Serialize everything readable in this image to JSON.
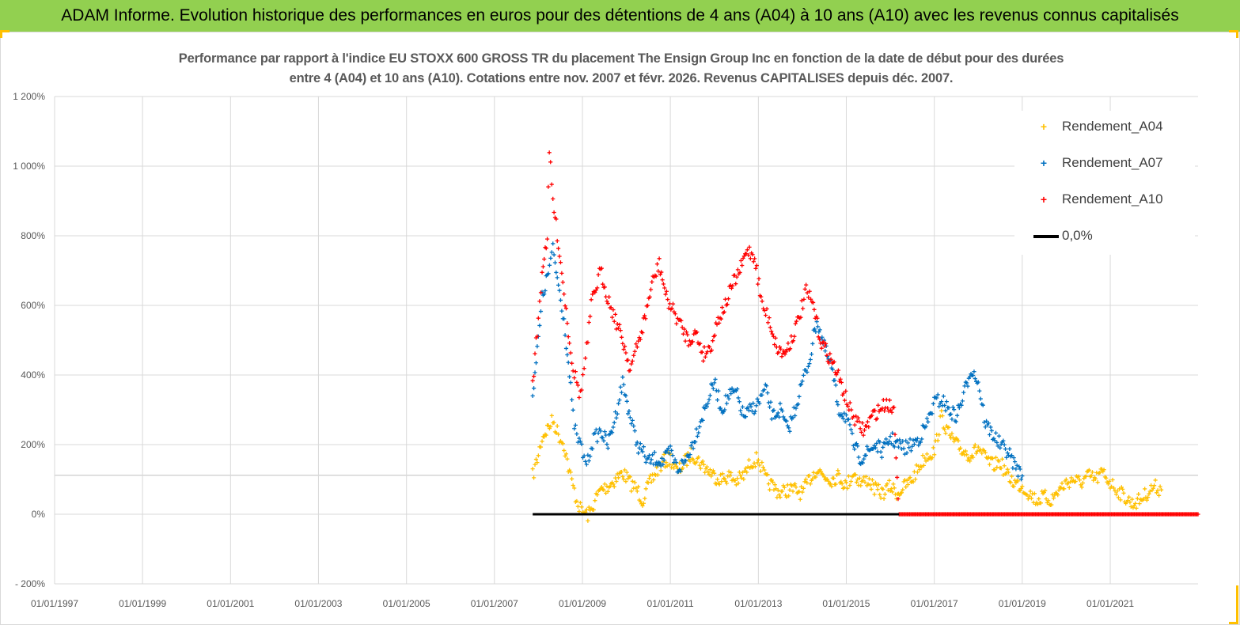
{
  "banner": {
    "title": "ADAM Informe. Evolution historique des performances en euros pour des détentions de 4 ans (A04) à 10 ans (A10) avec les revenus connus capitalisés",
    "color": "#92d050"
  },
  "chart_data": {
    "type": "scatter",
    "title_line1": "Performance par rapport à l'indice EU STOXX 600 GROSS TR  du placement The Ensign Group Inc en fonction de la date de début pour des durées",
    "title_line2": "entre 4 (A04) et 10 ans (A10). Cotations entre nov. 2007 et févr. 2026. Revenus CAPITALISES depuis déc. 2007.",
    "x_axis": {
      "type": "date",
      "range": [
        "1997-01-01",
        "2022-12-31"
      ],
      "tick_labels": [
        "01/01/1997",
        "01/01/1999",
        "01/01/2001",
        "01/01/2003",
        "01/01/2005",
        "01/01/2007",
        "01/01/2009",
        "01/01/2011",
        "01/01/2013",
        "01/01/2015",
        "01/01/2017",
        "01/01/2019",
        "01/01/2021"
      ]
    },
    "y_axis": {
      "unit": "%",
      "range": [
        -200,
        1200
      ],
      "tick_labels": [
        "- 200%",
        "0%",
        "200%",
        "400%",
        "600%",
        "800%",
        "1 000%",
        "1 200%"
      ],
      "tick_values": [
        -200,
        0,
        200,
        400,
        600,
        800,
        1000,
        1200
      ]
    },
    "grid": true,
    "legend_position": "top-right",
    "series": [
      {
        "name": "Rendement_A04",
        "color": "#ffc000",
        "marker": "+",
        "points": [
          [
            "2007-11-15",
            110
          ],
          [
            "2008-01-01",
            170
          ],
          [
            "2008-02-01",
            220
          ],
          [
            "2008-03-15",
            245
          ],
          [
            "2008-05-01",
            270
          ],
          [
            "2008-06-15",
            230
          ],
          [
            "2008-08-01",
            200
          ],
          [
            "2008-09-15",
            120
          ],
          [
            "2008-10-15",
            80
          ],
          [
            "2008-11-15",
            40
          ],
          [
            "2008-12-15",
            15
          ],
          [
            "2009-01-15",
            5
          ],
          [
            "2009-02-15",
            -2
          ],
          [
            "2009-03-15",
            10
          ],
          [
            "2009-04-15",
            40
          ],
          [
            "2009-06-01",
            70
          ],
          [
            "2009-08-01",
            80
          ],
          [
            "2009-10-01",
            100
          ],
          [
            "2009-12-01",
            120
          ],
          [
            "2010-02-01",
            90
          ],
          [
            "2010-04-01",
            70
          ],
          [
            "2010-05-15",
            40
          ],
          [
            "2010-07-01",
            80
          ],
          [
            "2010-09-01",
            120
          ],
          [
            "2010-11-01",
            150
          ],
          [
            "2011-01-01",
            160
          ],
          [
            "2011-03-01",
            120
          ],
          [
            "2011-05-01",
            150
          ],
          [
            "2011-07-01",
            175
          ],
          [
            "2011-09-01",
            150
          ],
          [
            "2011-11-01",
            130
          ],
          [
            "2012-01-01",
            110
          ],
          [
            "2012-03-01",
            100
          ],
          [
            "2012-05-01",
            110
          ],
          [
            "2012-07-01",
            95
          ],
          [
            "2012-09-01",
            110
          ],
          [
            "2012-11-01",
            150
          ],
          [
            "2013-01-01",
            160
          ],
          [
            "2013-03-01",
            100
          ],
          [
            "2013-05-01",
            80
          ],
          [
            "2013-07-01",
            60
          ],
          [
            "2013-09-01",
            70
          ],
          [
            "2013-11-01",
            70
          ],
          [
            "2014-01-01",
            60
          ],
          [
            "2014-03-01",
            100
          ],
          [
            "2014-05-01",
            130
          ],
          [
            "2014-07-01",
            110
          ],
          [
            "2014-09-01",
            100
          ],
          [
            "2014-11-01",
            110
          ],
          [
            "2015-01-01",
            80
          ],
          [
            "2015-03-01",
            120
          ],
          [
            "2015-05-01",
            90
          ],
          [
            "2015-07-01",
            100
          ],
          [
            "2015-09-01",
            70
          ],
          [
            "2015-11-01",
            60
          ],
          [
            "2016-01-01",
            80
          ],
          [
            "2016-03-01",
            60
          ],
          [
            "2016-05-01",
            80
          ],
          [
            "2016-07-01",
            100
          ],
          [
            "2016-09-01",
            140
          ],
          [
            "2016-11-01",
            170
          ],
          [
            "2017-01-01",
            180
          ],
          [
            "2017-03-01",
            280
          ],
          [
            "2017-05-01",
            230
          ],
          [
            "2017-07-01",
            200
          ],
          [
            "2017-09-01",
            180
          ],
          [
            "2017-11-01",
            170
          ],
          [
            "2018-01-01",
            190
          ],
          [
            "2018-03-01",
            160
          ],
          [
            "2018-05-01",
            140
          ],
          [
            "2018-07-01",
            150
          ],
          [
            "2018-09-01",
            110
          ],
          [
            "2018-11-01",
            90
          ],
          [
            "2019-01-01",
            80
          ],
          [
            "2019-03-01",
            60
          ],
          [
            "2019-05-01",
            40
          ],
          [
            "2019-07-01",
            50
          ],
          [
            "2019-09-01",
            40
          ],
          [
            "2019-11-01",
            70
          ],
          [
            "2020-01-01",
            90
          ],
          [
            "2020-03-01",
            100
          ],
          [
            "2020-05-01",
            90
          ],
          [
            "2020-07-01",
            110
          ],
          [
            "2020-09-01",
            100
          ],
          [
            "2020-11-01",
            120
          ],
          [
            "2021-01-01",
            90
          ],
          [
            "2021-03-01",
            70
          ],
          [
            "2021-05-01",
            50
          ],
          [
            "2021-07-01",
            30
          ],
          [
            "2021-09-01",
            40
          ],
          [
            "2021-11-01",
            60
          ],
          [
            "2022-01-01",
            80
          ],
          [
            "2022-03-01",
            70
          ]
        ]
      },
      {
        "name": "Rendement_A07",
        "color": "#0070c0",
        "marker": "+",
        "points": [
          [
            "2007-11-15",
            350
          ],
          [
            "2008-01-01",
            500
          ],
          [
            "2008-02-01",
            620
          ],
          [
            "2008-03-15",
            680
          ],
          [
            "2008-05-01",
            760
          ],
          [
            "2008-06-15",
            660
          ],
          [
            "2008-08-01",
            560
          ],
          [
            "2008-09-15",
            400
          ],
          [
            "2008-10-15",
            280
          ],
          [
            "2008-11-15",
            220
          ],
          [
            "2008-12-15",
            200
          ],
          [
            "2009-01-15",
            160
          ],
          [
            "2009-02-15",
            150
          ],
          [
            "2009-03-15",
            200
          ],
          [
            "2009-04-15",
            220
          ],
          [
            "2009-06-01",
            240
          ],
          [
            "2009-08-01",
            200
          ],
          [
            "2009-10-01",
            280
          ],
          [
            "2009-12-01",
            380
          ],
          [
            "2010-02-01",
            280
          ],
          [
            "2010-04-01",
            200
          ],
          [
            "2010-05-15",
            180
          ],
          [
            "2010-07-01",
            150
          ],
          [
            "2010-09-01",
            160
          ],
          [
            "2010-11-01",
            150
          ],
          [
            "2011-01-01",
            180
          ],
          [
            "2011-03-01",
            130
          ],
          [
            "2011-05-01",
            150
          ],
          [
            "2011-07-01",
            200
          ],
          [
            "2011-09-01",
            260
          ],
          [
            "2011-11-01",
            320
          ],
          [
            "2012-01-01",
            380
          ],
          [
            "2012-03-01",
            300
          ],
          [
            "2012-05-01",
            340
          ],
          [
            "2012-07-01",
            350
          ],
          [
            "2012-09-01",
            280
          ],
          [
            "2012-11-01",
            300
          ],
          [
            "2013-01-01",
            320
          ],
          [
            "2013-03-01",
            360
          ],
          [
            "2013-05-01",
            280
          ],
          [
            "2013-07-01",
            300
          ],
          [
            "2013-09-01",
            240
          ],
          [
            "2013-11-01",
            300
          ],
          [
            "2014-01-01",
            380
          ],
          [
            "2014-03-01",
            440
          ],
          [
            "2014-05-01",
            560
          ],
          [
            "2014-07-01",
            480
          ],
          [
            "2014-09-01",
            420
          ],
          [
            "2014-11-01",
            300
          ],
          [
            "2015-01-01",
            280
          ],
          [
            "2015-03-01",
            200
          ],
          [
            "2015-05-01",
            160
          ],
          [
            "2015-07-01",
            180
          ],
          [
            "2015-09-01",
            200
          ],
          [
            "2015-11-01",
            180
          ],
          [
            "2016-01-01",
            220
          ],
          [
            "2016-03-01",
            200
          ],
          [
            "2016-05-01",
            190
          ],
          [
            "2016-07-01",
            200
          ],
          [
            "2016-09-01",
            220
          ],
          [
            "2016-11-01",
            260
          ],
          [
            "2017-01-01",
            320
          ],
          [
            "2017-03-01",
            330
          ],
          [
            "2017-05-01",
            300
          ],
          [
            "2017-07-01",
            280
          ],
          [
            "2017-09-01",
            340
          ],
          [
            "2017-11-01",
            420
          ],
          [
            "2018-01-01",
            380
          ],
          [
            "2018-03-01",
            260
          ],
          [
            "2018-05-01",
            230
          ],
          [
            "2018-07-01",
            200
          ],
          [
            "2018-09-01",
            180
          ],
          [
            "2018-11-01",
            140
          ],
          [
            "2019-01-01",
            110
          ]
        ]
      },
      {
        "name": "Rendement_A10",
        "color": "#ff0000",
        "marker": "+",
        "points": [
          [
            "2007-11-15",
            380
          ],
          [
            "2008-01-01",
            560
          ],
          [
            "2008-02-01",
            700
          ],
          [
            "2008-03-15",
            800
          ],
          [
            "2008-04-01",
            1040
          ],
          [
            "2008-05-01",
            900
          ],
          [
            "2008-06-15",
            780
          ],
          [
            "2008-08-01",
            640
          ],
          [
            "2008-09-15",
            500
          ],
          [
            "2008-10-15",
            420
          ],
          [
            "2008-11-15",
            380
          ],
          [
            "2008-12-15",
            340
          ],
          [
            "2009-01-15",
            420
          ],
          [
            "2009-02-15",
            500
          ],
          [
            "2009-03-15",
            600
          ],
          [
            "2009-04-15",
            640
          ],
          [
            "2009-06-01",
            700
          ],
          [
            "2009-08-01",
            620
          ],
          [
            "2009-10-01",
            560
          ],
          [
            "2009-12-01",
            500
          ],
          [
            "2010-02-01",
            420
          ],
          [
            "2010-04-01",
            480
          ],
          [
            "2010-06-01",
            560
          ],
          [
            "2010-08-01",
            660
          ],
          [
            "2010-10-01",
            720
          ],
          [
            "2010-12-01",
            620
          ],
          [
            "2011-02-01",
            580
          ],
          [
            "2011-04-01",
            540
          ],
          [
            "2011-06-01",
            500
          ],
          [
            "2011-08-01",
            520
          ],
          [
            "2011-10-01",
            460
          ],
          [
            "2011-12-01",
            480
          ],
          [
            "2012-02-01",
            560
          ],
          [
            "2012-04-01",
            600
          ],
          [
            "2012-06-01",
            660
          ],
          [
            "2012-08-01",
            700
          ],
          [
            "2012-10-01",
            760
          ],
          [
            "2012-12-01",
            740
          ],
          [
            "2013-02-01",
            600
          ],
          [
            "2013-04-01",
            560
          ],
          [
            "2013-06-01",
            480
          ],
          [
            "2013-08-01",
            460
          ],
          [
            "2013-10-01",
            500
          ],
          [
            "2013-12-01",
            560
          ],
          [
            "2014-02-01",
            640
          ],
          [
            "2014-04-01",
            600
          ],
          [
            "2014-06-01",
            500
          ],
          [
            "2014-08-01",
            460
          ],
          [
            "2014-10-01",
            420
          ],
          [
            "2014-12-01",
            360
          ],
          [
            "2015-02-01",
            300
          ],
          [
            "2015-04-01",
            260
          ],
          [
            "2015-06-01",
            240
          ],
          [
            "2015-08-01",
            280
          ],
          [
            "2015-10-01",
            300
          ],
          [
            "2015-12-01",
            320
          ],
          [
            "2016-02-01",
            300
          ],
          [
            "2016-03-15",
            0
          ],
          [
            "2016-06-01",
            0
          ],
          [
            "2017-01-01",
            0
          ],
          [
            "2018-01-01",
            0
          ],
          [
            "2019-01-01",
            0
          ],
          [
            "2020-01-01",
            0
          ],
          [
            "2021-01-01",
            0
          ],
          [
            "2022-01-01",
            0
          ],
          [
            "2022-12-31",
            0
          ]
        ]
      },
      {
        "name": "0,0%",
        "color": "#000000",
        "marker": "line",
        "points": [
          [
            "2007-11-15",
            0
          ],
          [
            "2016-03-15",
            0
          ]
        ]
      }
    ]
  }
}
